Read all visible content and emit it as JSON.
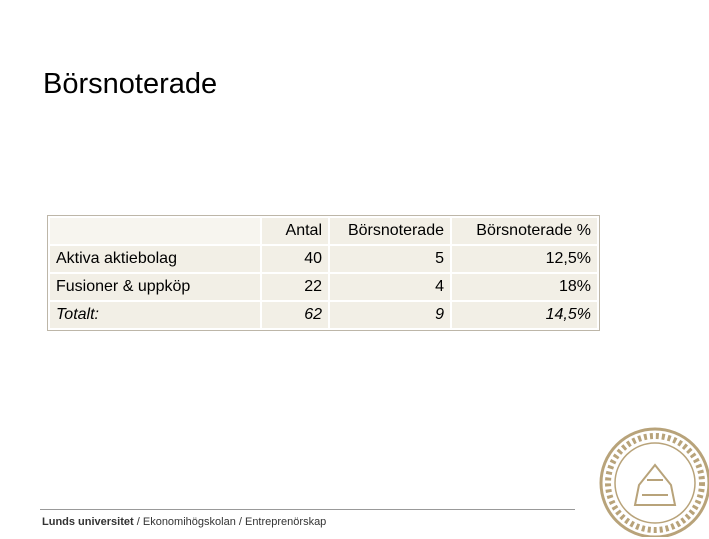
{
  "header": {
    "title": "Börsnoterade"
  },
  "table": {
    "columns": [
      "Antal",
      "Börsnoterade",
      "Börsnoterade %"
    ],
    "rows": [
      [
        "Aktiva aktiebolag",
        "40",
        "5",
        "12,5%"
      ],
      [
        "Fusioner & uppköp",
        "22",
        "4",
        "18%"
      ],
      [
        "Totalt:",
        "62",
        "9",
        "14,5%"
      ]
    ]
  },
  "footer": {
    "organization": "Lunds universitet",
    "path": "/ Ekonomihögskolan / Entreprenörskap"
  }
}
